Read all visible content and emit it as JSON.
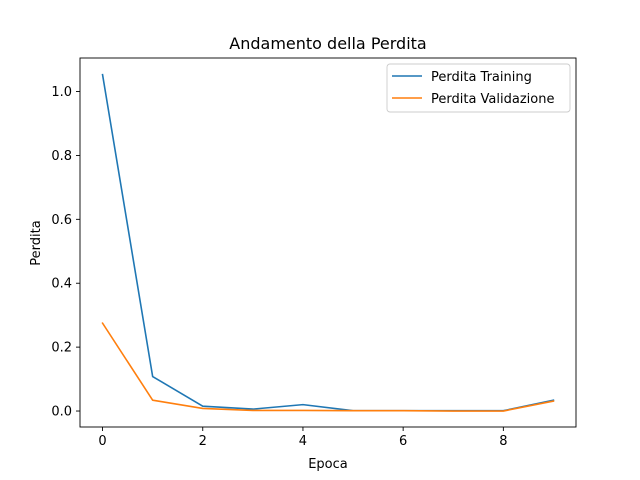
{
  "chart_data": {
    "type": "line",
    "title": "Andamento della Perdita",
    "xlabel": "Epoca",
    "ylabel": "Perdita",
    "x": [
      0,
      1,
      2,
      3,
      4,
      5,
      6,
      7,
      8,
      9
    ],
    "xlim": [
      -0.45,
      9.45
    ],
    "ylim": [
      -0.05,
      1.105
    ],
    "xticks": [
      0,
      2,
      4,
      6,
      8
    ],
    "xtick_labels": [
      "0",
      "2",
      "4",
      "6",
      "8"
    ],
    "yticks": [
      0.0,
      0.2,
      0.4,
      0.6,
      0.8,
      1.0
    ],
    "ytick_labels": [
      "0.0",
      "0.2",
      "0.4",
      "0.6",
      "0.8",
      "1.0"
    ],
    "grid": false,
    "legend_position": "top-right",
    "series": [
      {
        "name": "Perdita Training",
        "color": "#1f77b4",
        "values": [
          1.053,
          0.108,
          0.015,
          0.006,
          0.02,
          0.001,
          0.001,
          0.001,
          0.001,
          0.034
        ]
      },
      {
        "name": "Perdita Validazione",
        "color": "#ff7f0e",
        "values": [
          0.275,
          0.034,
          0.008,
          0.002,
          0.002,
          0.001,
          0.001,
          0.0,
          0.0,
          0.031
        ]
      }
    ]
  }
}
